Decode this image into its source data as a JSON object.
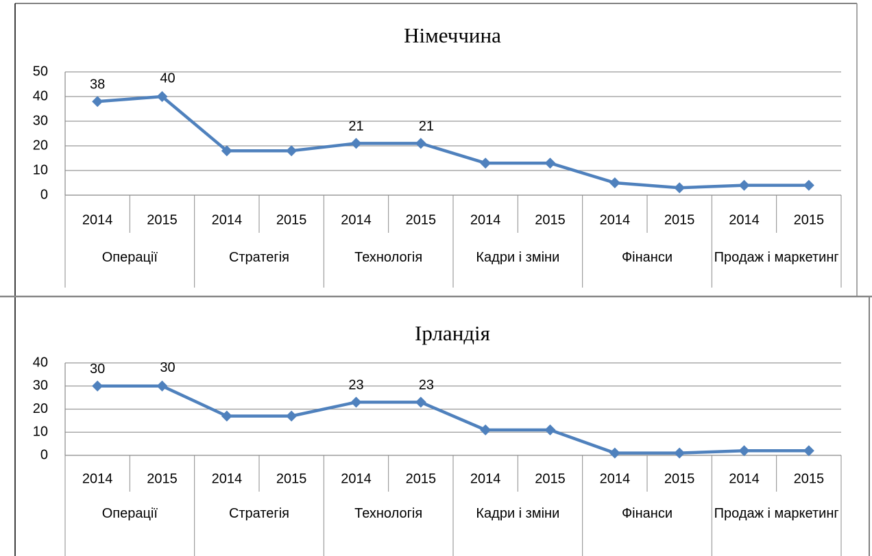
{
  "chart_data": [
    {
      "type": "line",
      "title": "Німеччина",
      "color": "#4f81bd",
      "grid": true,
      "ylim": [
        0,
        50
      ],
      "yticks": [
        0,
        10,
        20,
        30,
        40,
        50
      ],
      "groups": [
        {
          "name": "Операції",
          "categories": [
            "2014",
            "2015"
          ]
        },
        {
          "name": "Стратегія",
          "categories": [
            "2014",
            "2015"
          ]
        },
        {
          "name": "Технологія",
          "categories": [
            "2014",
            "2015"
          ]
        },
        {
          "name": "Кадри і зміни",
          "categories": [
            "2014",
            "2015"
          ]
        },
        {
          "name": "Фінанси",
          "categories": [
            "2014",
            "2015"
          ]
        },
        {
          "name": "Продаж і маркетинг",
          "categories": [
            "2014",
            "2015"
          ]
        }
      ],
      "values": [
        38,
        40,
        18,
        18,
        21,
        21,
        13,
        13,
        5,
        3,
        4,
        4
      ],
      "show_label": [
        true,
        true,
        false,
        false,
        true,
        true,
        false,
        false,
        false,
        false,
        false,
        false
      ]
    },
    {
      "type": "line",
      "title": "Ірландія",
      "color": "#4f81bd",
      "grid": true,
      "ylim": [
        0,
        40
      ],
      "yticks": [
        0,
        10,
        20,
        30,
        40
      ],
      "groups": [
        {
          "name": "Операції",
          "categories": [
            "2014",
            "2015"
          ]
        },
        {
          "name": "Стратегія",
          "categories": [
            "2014",
            "2015"
          ]
        },
        {
          "name": "Технологія",
          "categories": [
            "2014",
            "2015"
          ]
        },
        {
          "name": "Кадри і зміни",
          "categories": [
            "2014",
            "2015"
          ]
        },
        {
          "name": "Фінанси",
          "categories": [
            "2014",
            "2015"
          ]
        },
        {
          "name": "Продаж і маркетинг",
          "categories": [
            "2014",
            "2015"
          ]
        }
      ],
      "values": [
        30,
        30,
        17,
        17,
        23,
        23,
        11,
        11,
        1,
        1,
        2,
        2
      ],
      "show_label": [
        true,
        true,
        false,
        false,
        true,
        true,
        false,
        false,
        false,
        false,
        false,
        false
      ]
    }
  ]
}
